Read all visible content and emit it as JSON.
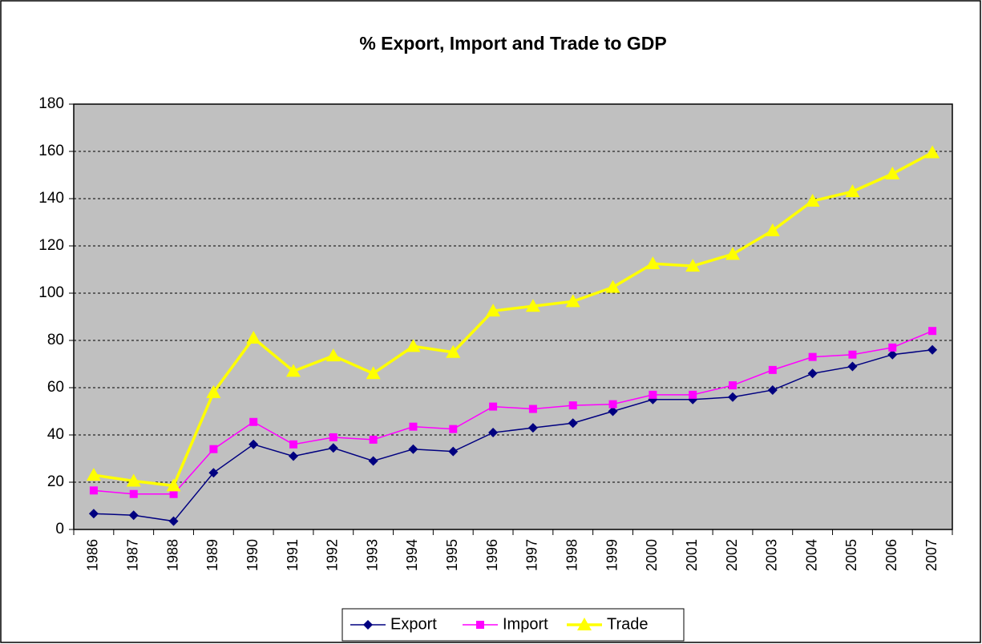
{
  "chart_data": {
    "type": "line",
    "title": "% Export, Import and Trade to GDP",
    "categories": [
      "1986",
      "1987",
      "1988",
      "1989",
      "1990",
      "1991",
      "1992",
      "1993",
      "1994",
      "1995",
      "1996",
      "1997",
      "1998",
      "1999",
      "2000",
      "2001",
      "2002",
      "2003",
      "2004",
      "2005",
      "2006",
      "2007"
    ],
    "series": [
      {
        "name": "Export",
        "color": "#000080",
        "marker": "diamond",
        "values": [
          6.7,
          6,
          3.5,
          24,
          36,
          31,
          34.5,
          29,
          34,
          33,
          41,
          43,
          45,
          50,
          55,
          55,
          56,
          59,
          66,
          69,
          74,
          76
        ]
      },
      {
        "name": "Import",
        "color": "#ff00ff",
        "marker": "square",
        "values": [
          16.5,
          15,
          15,
          34,
          45.5,
          36,
          39,
          38,
          43.5,
          42.5,
          52,
          51,
          52.5,
          53,
          57,
          57,
          61,
          67.5,
          73,
          74,
          77,
          84
        ]
      },
      {
        "name": "Trade",
        "color": "#ffff00",
        "marker": "triangle",
        "values": [
          23,
          20.5,
          18.5,
          58,
          81,
          67,
          73.5,
          66,
          77.5,
          75,
          92.5,
          94.5,
          96.5,
          102.5,
          112.5,
          111.5,
          116.5,
          126.5,
          139,
          143,
          150.5,
          159.5
        ]
      }
    ],
    "ylim": [
      0,
      180
    ],
    "yticks": [
      0,
      20,
      40,
      60,
      80,
      100,
      120,
      140,
      160,
      180
    ],
    "grid": true,
    "legend": "bottom"
  }
}
